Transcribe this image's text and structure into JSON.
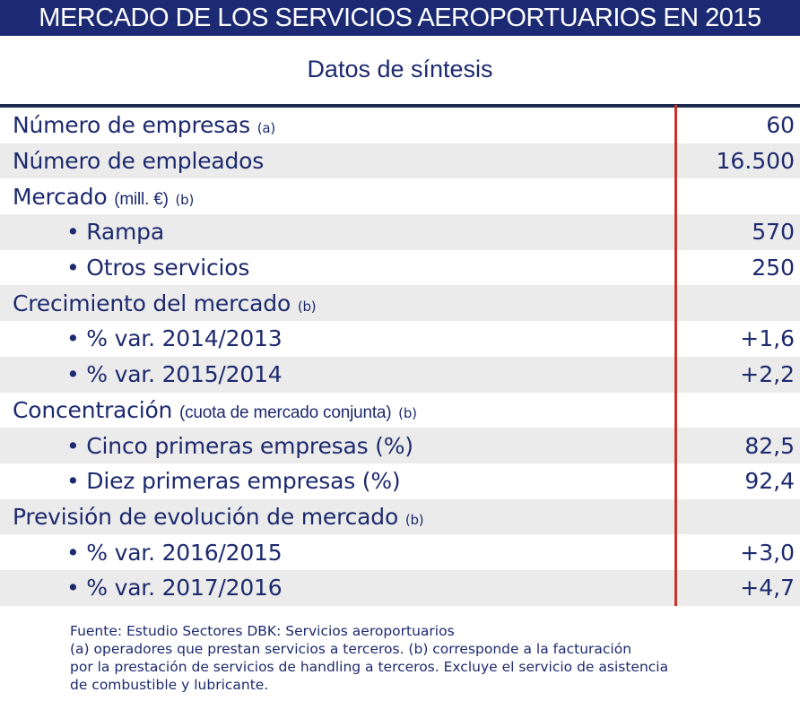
{
  "title": "MERCADO DE LOS SERVICIOS AEROPORTUARIOS EN 2015",
  "subtitle": "Datos de síntesis",
  "rows": [
    {
      "label": "Número de empresas",
      "note": "",
      "ref": "(a)",
      "value": "60",
      "sub": false
    },
    {
      "label": "Número de empleados",
      "note": "",
      "ref": "",
      "value": "16.500",
      "sub": false
    },
    {
      "label": "Mercado",
      "note": "(mill. €)",
      "ref": "(b)",
      "value": "",
      "sub": false
    },
    {
      "label": "• Rampa",
      "note": "",
      "ref": "",
      "value": "570",
      "sub": true
    },
    {
      "label": "• Otros servicios",
      "note": "",
      "ref": "",
      "value": "250",
      "sub": true
    },
    {
      "label": "Crecimiento del mercado",
      "note": "",
      "ref": "(b)",
      "value": "",
      "sub": false
    },
    {
      "label": "• % var. 2014/2013",
      "note": "",
      "ref": "",
      "value": "+1,6",
      "sub": true
    },
    {
      "label": "• % var. 2015/2014",
      "note": "",
      "ref": "",
      "value": "+2,2",
      "sub": true
    },
    {
      "label": "Concentración",
      "note": "(cuota de mercado conjunta)",
      "ref": "(b)",
      "value": "",
      "sub": false
    },
    {
      "label": "• Cinco primeras empresas (%)",
      "note": "",
      "ref": "",
      "value": "82,5",
      "sub": true
    },
    {
      "label": "• Diez primeras empresas (%)",
      "note": "",
      "ref": "",
      "value": "92,4",
      "sub": true
    },
    {
      "label": "Previsión de evolución de mercado",
      "note": "",
      "ref": "(b)",
      "value": "",
      "sub": false
    },
    {
      "label": "• % var. 2016/2015",
      "note": "",
      "ref": "",
      "value": "+3,0",
      "sub": true
    },
    {
      "label": "• % var. 2017/2016",
      "note": "",
      "ref": "",
      "value": "+4,7",
      "sub": true
    }
  ],
  "footer": [
    "Fuente: Estudio Sectores DBK: Servicios aeroportuarios",
    "(a) operadores que prestan servicios a terceros. (b) corresponde a la facturación",
    "por la prestación de servicios de handling a terceros. Excluye el servicio de asistencia",
    "de combustible y lubricante."
  ],
  "colors": {
    "header_bg": "#1c2a74",
    "text": "#1d2a6e",
    "divider": "#c8332a",
    "stripe": "#ebebeb"
  }
}
